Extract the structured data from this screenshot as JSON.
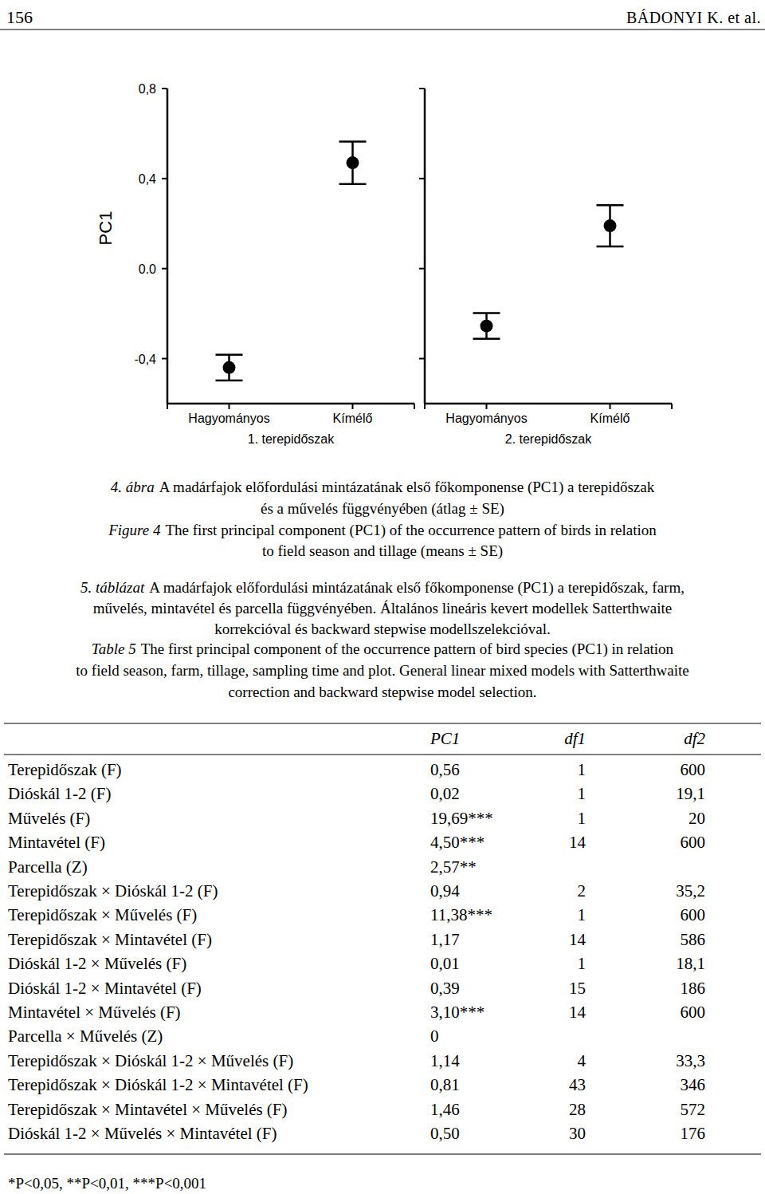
{
  "header": {
    "page_number": "156",
    "authors": "BÁDONYI K. et al."
  },
  "chart_data": {
    "type": "point",
    "y_label": "PC1",
    "ylim": [
      -0.6,
      0.8
    ],
    "yticks": [
      {
        "value": -0.4,
        "label": "-0,4"
      },
      {
        "value": 0,
        "label": "0.0"
      },
      {
        "value": 0.4,
        "label": "0,4"
      },
      {
        "value": 0.8,
        "label": "0,8"
      }
    ],
    "color": "#000000",
    "panels": [
      {
        "label": "1. terepidőszak",
        "categories": [
          "Hagyományos",
          "Kímélő"
        ],
        "values": [
          -0.44,
          0.47
        ],
        "errors": [
          0.057,
          0.094
        ]
      },
      {
        "label": "2. terepidőszak",
        "categories": [
          "Hagyományos",
          "Kímélő"
        ],
        "values": [
          -0.255,
          0.19
        ],
        "errors": [
          0.057,
          0.092
        ]
      }
    ]
  },
  "figure_caption": {
    "hu": {
      "label": "4. ábra",
      "lines": [
        "A madárfajok előfordulási mintázatának első főkomponense (PC1) a terepidőszak",
        "és a művelés függvényében (átlag ± SE)"
      ]
    },
    "en": {
      "label": "Figure 4",
      "lines": [
        "The first principal component (PC1) of the occurrence pattern of birds in relation",
        "to field season and tillage (means ± SE)"
      ]
    }
  },
  "table_caption": {
    "hu": {
      "label": "5. táblázat",
      "lines": [
        "A madárfajok előfordulási mintázatának első főkomponense (PC1) a terepidőszak, farm,",
        "művelés, mintavétel és parcella függvényében. Általános lineáris kevert modellek Satterthwaite",
        "korrekcióval és backward stepwise modellszelekcióval."
      ]
    },
    "en": {
      "label": "Table 5",
      "lines": [
        "The first principal component of the occurrence pattern of bird species (PC1) in relation",
        "to field season, farm, tillage, sampling time and plot. General linear mixed models with Satterthwaite",
        "correction and backward stepwise model selection."
      ]
    }
  },
  "table": {
    "columns": [
      "PC1",
      "df1",
      "df2"
    ],
    "rows": [
      [
        "Terepidőszak (F)",
        "0,56",
        "1",
        "600"
      ],
      [
        "Dióskál 1-2 (F)",
        "0,02",
        "1",
        "19,1"
      ],
      [
        "Művelés (F)",
        "19,69***",
        "1",
        "20"
      ],
      [
        "Mintavétel (F)",
        "4,50***",
        "14",
        "600"
      ],
      [
        "Parcella (Z)",
        "2,57**"
      ],
      [
        "Terepidőszak × Dióskál 1-2 (F)",
        "0,94",
        "2",
        "35,2"
      ],
      [
        "Terepidőszak × Művelés (F)",
        "11,38***",
        "1",
        "600"
      ],
      [
        "Terepidőszak × Mintavétel (F)",
        "1,17",
        "14",
        "586"
      ],
      [
        "Dióskál 1-2 × Művelés (F)",
        "0,01",
        "1",
        "18,1"
      ],
      [
        "Dióskál 1-2 × Mintavétel (F)",
        "0,39",
        "15",
        "186"
      ],
      [
        "Mintavétel × Művelés (F)",
        "3,10***",
        "14",
        "600"
      ],
      [
        "Parcella × Művelés (Z)",
        "0"
      ],
      [
        "Terepidőszak × Dióskál 1-2 × Művelés (F)",
        "1,14",
        "4",
        "33,3"
      ],
      [
        "Terepidőszak × Dióskál 1-2 × Mintavétel (F)",
        "0,81",
        "43",
        "346"
      ],
      [
        "Terepidőszak × Mintavétel × Művelés (F)",
        "1,46",
        "28",
        "572"
      ],
      [
        "Dióskál 1-2 × Művelés × Mintavétel (F)",
        "0,50",
        "30",
        "176"
      ]
    ]
  },
  "footnote": "*P<0,05, **P<0,01, ***P<0,001"
}
